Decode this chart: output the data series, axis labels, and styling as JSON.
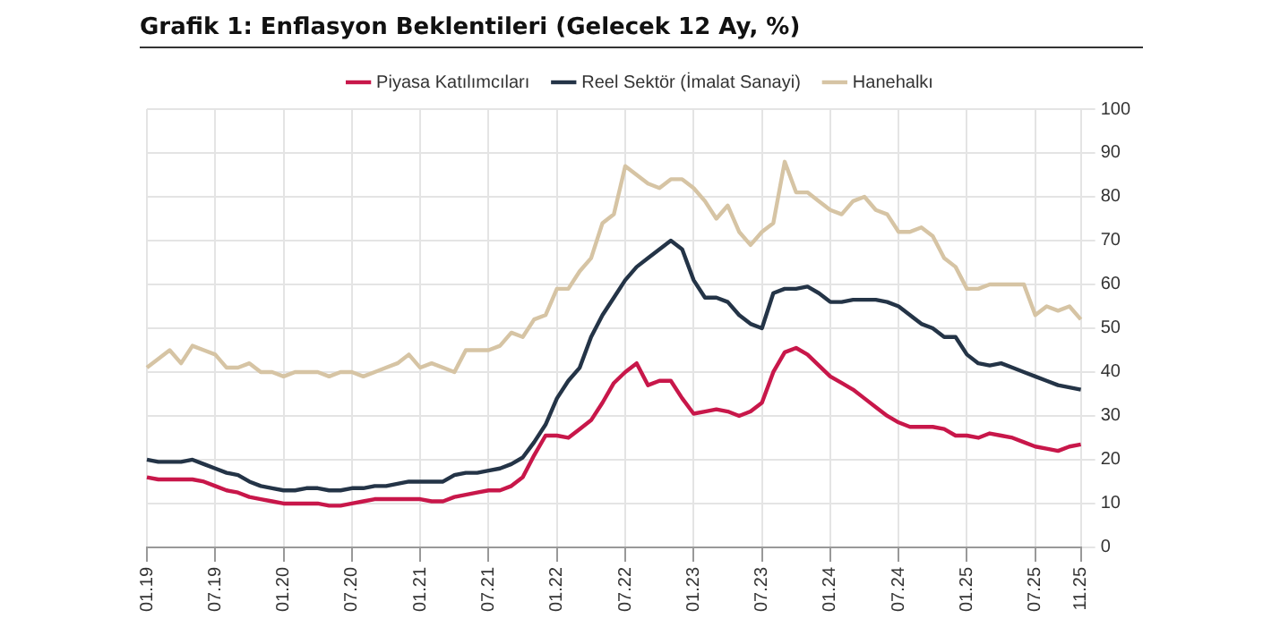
{
  "chart_data": {
    "type": "line",
    "title": "Grafik 1: Enflasyon Beklentileri (Gelecek 12 Ay, %)",
    "categories": [
      "01.19",
      null,
      null,
      null,
      null,
      null,
      "07.19",
      null,
      null,
      null,
      null,
      null,
      "01.20",
      null,
      null,
      null,
      null,
      null,
      "07.20",
      null,
      null,
      null,
      null,
      null,
      "01.21",
      null,
      null,
      null,
      null,
      null,
      "07.21",
      null,
      null,
      null,
      null,
      null,
      "01.22",
      null,
      null,
      null,
      null,
      null,
      "07.22",
      null,
      null,
      null,
      null,
      null,
      "01.23",
      null,
      null,
      null,
      null,
      null,
      "07.23",
      null,
      null,
      null,
      null,
      null,
      "01.24",
      null,
      null,
      null,
      null,
      null,
      "07.24",
      null,
      null,
      null,
      null,
      null,
      "01.25",
      null,
      null,
      null,
      null,
      null,
      "07.25",
      null,
      null,
      null,
      "11.25"
    ],
    "series": [
      {
        "name": "Piyasa Katılımcıları",
        "color": "#c8174a",
        "values": [
          16,
          15.5,
          15.5,
          15.5,
          15.5,
          15,
          14,
          13,
          12.5,
          11.5,
          11,
          10.5,
          10,
          10,
          10,
          10,
          9.5,
          9.5,
          10,
          10.5,
          11,
          11,
          11,
          11,
          11,
          10.5,
          10.5,
          11.5,
          12,
          12.5,
          13,
          13,
          14,
          16,
          21,
          25.5,
          25.5,
          25,
          27,
          29,
          33,
          37.5,
          40,
          42,
          37,
          38,
          38,
          34,
          30.5,
          31,
          31.5,
          31,
          30,
          31,
          33,
          40,
          44.5,
          45.5,
          44,
          41.5,
          39,
          37.5,
          36,
          34,
          32,
          30,
          28.5,
          27.5,
          27.5,
          27.5,
          27,
          25.5,
          25.5,
          25,
          26,
          25.5,
          25,
          24,
          23,
          22.5,
          22,
          23,
          23.5
        ]
      },
      {
        "name": "Reel Sektör (İmalat Sanayi)",
        "color": "#243447",
        "values": [
          20,
          19.5,
          19.5,
          19.5,
          20,
          19,
          18,
          17,
          16.5,
          15,
          14,
          13.5,
          13,
          13,
          13.5,
          13.5,
          13,
          13,
          13.5,
          13.5,
          14,
          14,
          14.5,
          15,
          15,
          15,
          15,
          16.5,
          17,
          17,
          17.5,
          18,
          19,
          20.5,
          24,
          28,
          34,
          38,
          41,
          48,
          53,
          57,
          61,
          64,
          66,
          68,
          70,
          68,
          61,
          57,
          57,
          56,
          53,
          51,
          50,
          58,
          59,
          59,
          59.5,
          58,
          56,
          56,
          56.5,
          56.5,
          56.5,
          56,
          55,
          53,
          51,
          50,
          48,
          48,
          44,
          42,
          41.5,
          42,
          41,
          40,
          39,
          38,
          37,
          36.5,
          36
        ]
      },
      {
        "name": "Hanehalkı",
        "color": "#d6c4a4",
        "values": [
          41,
          43,
          45,
          42,
          46,
          45,
          44,
          41,
          41,
          42,
          40,
          40,
          39,
          40,
          40,
          40,
          39,
          40,
          40,
          39,
          40,
          41,
          42,
          44,
          41,
          42,
          41,
          40,
          45,
          45,
          45,
          46,
          49,
          48,
          52,
          53,
          59,
          59,
          63,
          66,
          74,
          76,
          87,
          85,
          83,
          82,
          84,
          84,
          82,
          79,
          75,
          78,
          72,
          69,
          72,
          74,
          88,
          81,
          81,
          79,
          77,
          76,
          79,
          80,
          77,
          76,
          72,
          72,
          73,
          71,
          66,
          64,
          59,
          59,
          60,
          60,
          60,
          60,
          53,
          55,
          54,
          55,
          52
        ]
      }
    ],
    "ylim": [
      0,
      100
    ],
    "yticks": [
      0,
      10,
      20,
      30,
      40,
      50,
      60,
      70,
      80,
      90,
      100
    ],
    "grid": true,
    "legend": "top",
    "marker": "none",
    "line_style": "solid"
  }
}
